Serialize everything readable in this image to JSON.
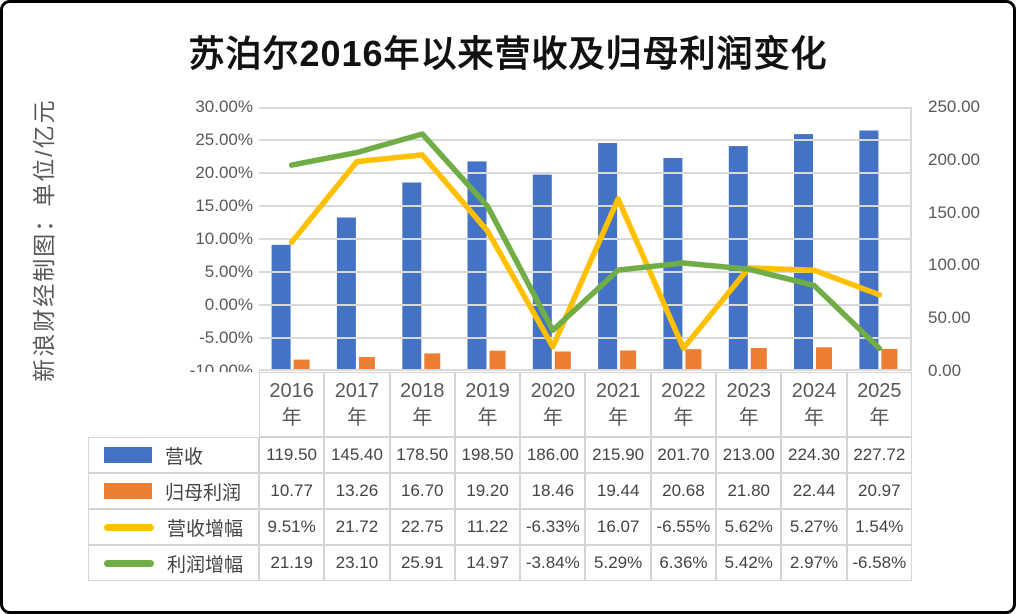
{
  "title": "苏泊尔2016年以来营收及归母利润变化",
  "side_label": "新浪财经制图：单位/亿元",
  "chart_data": {
    "type": "combo",
    "title": "苏泊尔2016年以来营收及归母利润变化",
    "categories": [
      "2016年",
      "2017年",
      "2018年",
      "2019年",
      "2020年",
      "2021年",
      "2022年",
      "2023年",
      "2024年",
      "2025年"
    ],
    "left_axis": {
      "ticks": [
        "30.00%",
        "25.00%",
        "20.00%",
        "15.00%",
        "10.00%",
        "5.00%",
        "0.00%",
        "-5.00%",
        "-10.00%"
      ],
      "min": -10,
      "max": 30
    },
    "right_axis": {
      "ticks": [
        "250.00",
        "200.00",
        "150.00",
        "100.00",
        "50.00",
        "0.00"
      ],
      "min": 0,
      "max": 250
    },
    "grid": "on",
    "grid_color": "#D9D9D9",
    "legend_position": "table-left",
    "series": [
      {
        "name": "营收",
        "kind": "bar",
        "axis": "right",
        "color": "#4472C4",
        "values": [
          119.5,
          145.4,
          178.5,
          198.5,
          186.0,
          215.9,
          201.7,
          213.0,
          224.3,
          227.72
        ],
        "table_cells": [
          "119.50",
          "145.40",
          "178.50",
          "198.50",
          "186.00",
          "215.90",
          "201.70",
          "213.00",
          "224.30",
          "227.72"
        ]
      },
      {
        "name": "归母利润",
        "kind": "bar",
        "axis": "right",
        "color": "#ED7D31",
        "values": [
          10.77,
          13.26,
          16.7,
          19.2,
          18.46,
          19.44,
          20.68,
          21.8,
          22.44,
          20.97
        ],
        "table_cells": [
          "10.77",
          "13.26",
          "16.70",
          "19.20",
          "18.46",
          "19.44",
          "20.68",
          "21.80",
          "22.44",
          "20.97"
        ]
      },
      {
        "name": "营收增幅",
        "kind": "line",
        "axis": "left",
        "color": "#FFC000",
        "values": [
          9.51,
          21.72,
          22.75,
          11.22,
          -6.33,
          16.07,
          -6.55,
          5.62,
          5.27,
          1.54
        ],
        "table_cells": [
          "9.51%",
          "21.72",
          "22.75",
          "11.22",
          "-6.33%",
          "16.07",
          "-6.55%",
          "5.62%",
          "5.27%",
          "1.54%"
        ]
      },
      {
        "name": "利润增幅",
        "kind": "line",
        "axis": "left",
        "color": "#70AD47",
        "values": [
          21.19,
          23.1,
          25.91,
          14.97,
          -3.84,
          5.29,
          6.36,
          5.42,
          2.97,
          -6.58
        ],
        "table_cells": [
          "21.19",
          "23.10",
          "25.91",
          "14.97",
          "-3.84%",
          "5.29%",
          "6.36%",
          "5.42%",
          "2.97%",
          "-6.58%"
        ]
      }
    ]
  }
}
